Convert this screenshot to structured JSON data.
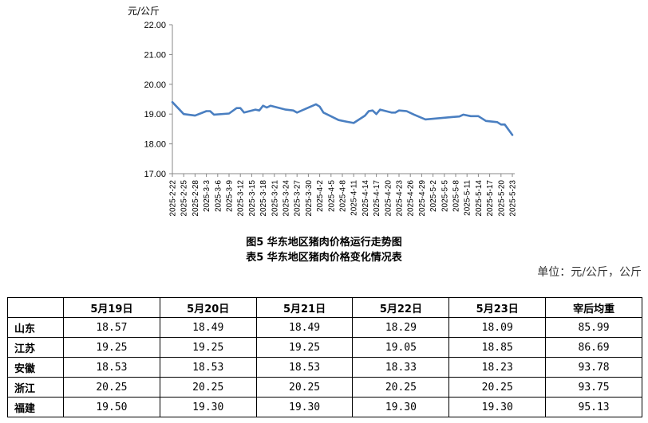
{
  "chart_data": {
    "type": "line",
    "unit_label": "元/公斤",
    "ylim": [
      17.0,
      22.0
    ],
    "yticks": [
      "17.00",
      "18.00",
      "19.00",
      "20.00",
      "21.00",
      "22.00"
    ],
    "xtick_labels": [
      "2025-2-22",
      "2025-2-25",
      "2025-2-28",
      "2025-3-3",
      "2025-3-6",
      "2025-3-9",
      "2025-3-12",
      "2025-3-15",
      "2025-3-18",
      "2025-3-21",
      "2025-3-24",
      "2025-3-27",
      "2025-3-30",
      "2025-4-2",
      "2025-4-5",
      "2025-4-8",
      "2025-4-11",
      "2025-4-14",
      "2025-4-17",
      "2025-4-20",
      "2025-4-23",
      "2025-4-26",
      "2025-4-29",
      "2025-5-2",
      "2025-5-5",
      "2025-5-8",
      "2025-5-11",
      "2025-5-14",
      "2025-5-17",
      "2025-5-20",
      "2025-5-23"
    ],
    "line_color": "#4a7fc1",
    "series": [
      {
        "points": [
          [
            "2025-2-22",
            19.4
          ],
          [
            "2025-2-25",
            19.0
          ],
          [
            "2025-2-28",
            18.95
          ],
          [
            "2025-3-3",
            19.1
          ],
          [
            "2025-3-4",
            19.1
          ],
          [
            "2025-3-5",
            18.98
          ],
          [
            "2025-3-9",
            19.02
          ],
          [
            "2025-3-11",
            19.2
          ],
          [
            "2025-3-12",
            19.2
          ],
          [
            "2025-3-13",
            19.05
          ],
          [
            "2025-3-16",
            19.15
          ],
          [
            "2025-3-17",
            19.12
          ],
          [
            "2025-3-18",
            19.28
          ],
          [
            "2025-3-19",
            19.22
          ],
          [
            "2025-3-20",
            19.28
          ],
          [
            "2025-3-24",
            19.15
          ],
          [
            "2025-3-26",
            19.12
          ],
          [
            "2025-3-27",
            19.05
          ],
          [
            "2025-4-1",
            19.33
          ],
          [
            "2025-4-2",
            19.25
          ],
          [
            "2025-4-3",
            19.05
          ],
          [
            "2025-4-7",
            18.8
          ],
          [
            "2025-4-9",
            18.75
          ],
          [
            "2025-4-11",
            18.7
          ],
          [
            "2025-4-14",
            18.95
          ],
          [
            "2025-4-15",
            19.1
          ],
          [
            "2025-4-16",
            19.12
          ],
          [
            "2025-4-17",
            19.0
          ],
          [
            "2025-4-18",
            19.15
          ],
          [
            "2025-4-21",
            19.05
          ],
          [
            "2025-4-22",
            19.05
          ],
          [
            "2025-4-23",
            19.12
          ],
          [
            "2025-4-25",
            19.1
          ],
          [
            "2025-4-27",
            18.98
          ],
          [
            "2025-4-30",
            18.82
          ],
          [
            "2025-5-7",
            18.9
          ],
          [
            "2025-5-9",
            18.92
          ],
          [
            "2025-5-10",
            18.98
          ],
          [
            "2025-5-12",
            18.93
          ],
          [
            "2025-5-14",
            18.93
          ],
          [
            "2025-5-16",
            18.77
          ],
          [
            "2025-5-19",
            18.73
          ],
          [
            "2025-5-20",
            18.65
          ],
          [
            "2025-5-21",
            18.65
          ],
          [
            "2025-5-23",
            18.3
          ]
        ]
      }
    ]
  },
  "caption_chart": "图5  华东地区猪肉价格运行走势图",
  "caption_table": "表5  华东地区猪肉价格变化情况表",
  "unit_note": "单位：元/公斤，公斤",
  "table": {
    "headers": [
      "",
      "5月19日",
      "5月20日",
      "5月21日",
      "5月22日",
      "5月23日",
      "宰后均重"
    ],
    "rows": [
      {
        "province": "山东",
        "values": [
          "18.57",
          "18.49",
          "18.49",
          "18.29",
          "18.09",
          "85.99"
        ]
      },
      {
        "province": "江苏",
        "values": [
          "19.25",
          "19.25",
          "19.25",
          "19.05",
          "18.85",
          "86.69"
        ]
      },
      {
        "province": "安徽",
        "values": [
          "18.53",
          "18.53",
          "18.53",
          "18.33",
          "18.23",
          "93.78"
        ]
      },
      {
        "province": "浙江",
        "values": [
          "20.25",
          "20.25",
          "20.25",
          "20.25",
          "20.25",
          "93.75"
        ]
      },
      {
        "province": "福建",
        "values": [
          "19.50",
          "19.30",
          "19.30",
          "19.30",
          "19.30",
          "95.13"
        ]
      }
    ]
  }
}
